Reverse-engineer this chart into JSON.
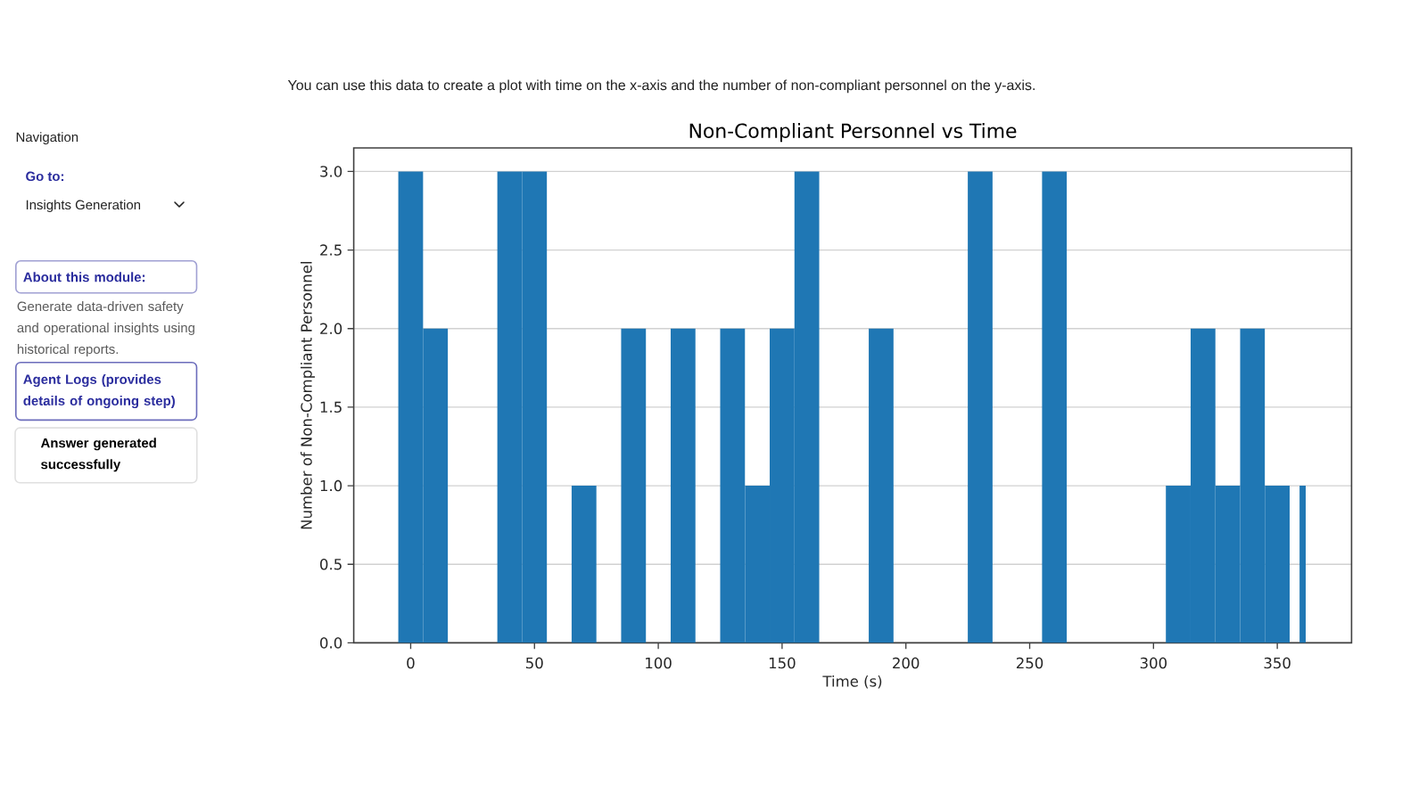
{
  "chart_data": {
    "type": "histogram",
    "title": "Non-Compliant Personnel vs Time",
    "xlabel": "Time (s)",
    "ylabel": "Number of Non-Compliant Personnel",
    "bins": [
      -5,
      5,
      15,
      35,
      45,
      55,
      65,
      75,
      85,
      95,
      105,
      115,
      125,
      135,
      145,
      155,
      165,
      185,
      195,
      225,
      235,
      255,
      265,
      305,
      315,
      325,
      335,
      345,
      355,
      359,
      361.5
    ],
    "values": [
      3,
      2,
      0,
      3,
      3,
      0,
      1,
      0,
      2,
      0,
      2,
      0,
      2,
      1,
      2,
      3,
      0,
      2,
      0,
      3,
      0,
      3,
      0,
      1,
      2,
      1,
      2,
      1,
      0,
      1
    ],
    "color": "#1f77b4",
    "xlim": [
      -23,
      380
    ],
    "ylim": [
      0,
      3.15
    ],
    "xticks": [
      0,
      50,
      100,
      150,
      200,
      250,
      300,
      350
    ],
    "yticks": [
      {
        "value": 0,
        "label": "0.0"
      },
      {
        "value": 0.5,
        "label": "0.5"
      },
      {
        "value": 1,
        "label": "1.0"
      },
      {
        "value": 1.5,
        "label": "1.5"
      },
      {
        "value": 2,
        "label": "2.0"
      },
      {
        "value": 2.5,
        "label": "2.5"
      },
      {
        "value": 3,
        "label": "3.0"
      }
    ],
    "grid": "y",
    "annotations": [
      "You can use this data to create a plot with time on the x-axis and the number of non-compliant personnel on the y-axis.",
      "Navigation",
      "Go to:",
      "Insights Generation",
      "About this module:",
      "Generate data-driven safety and operational insights using historical reports.",
      "Agent Logs (provides details of ongoing step)",
      "Answer generated successfully"
    ]
  }
}
